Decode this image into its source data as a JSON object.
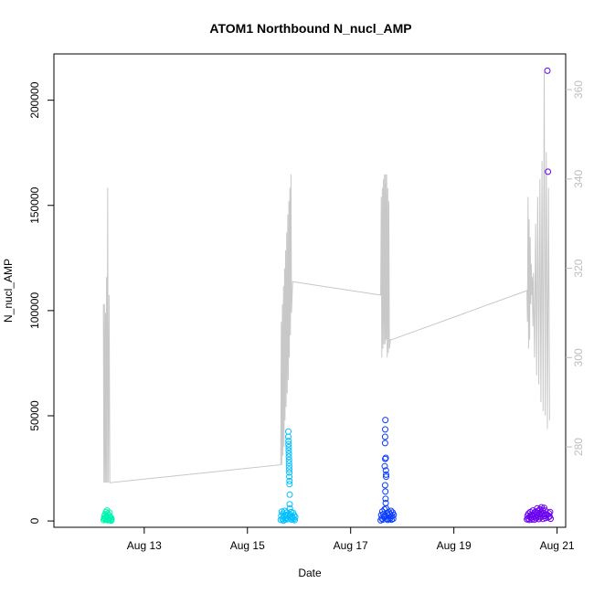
{
  "chart_data": {
    "type": "scatter",
    "title": "ATOM1 Northbound N_nucl_AMP",
    "xlabel": "Date",
    "ylabel": "N_nucl_AMP",
    "x_type": "date",
    "xlim": [
      "2024-08-11 06:00",
      "2024-08-21 04:00"
    ],
    "ylim": [
      -3000,
      222000
    ],
    "x_ticks": [
      {
        "date": "2024-08-13",
        "label": "Aug 13"
      },
      {
        "date": "2024-08-15",
        "label": "Aug 15"
      },
      {
        "date": "2024-08-17",
        "label": "Aug 17"
      },
      {
        "date": "2024-08-19",
        "label": "Aug 19"
      },
      {
        "date": "2024-08-21",
        "label": "Aug 21"
      }
    ],
    "y_ticks": [
      {
        "value": 0,
        "label": "0"
      },
      {
        "value": 50000,
        "label": "50000"
      },
      {
        "value": 100000,
        "label": "100000"
      },
      {
        "value": 150000,
        "label": "150000"
      },
      {
        "value": 200000,
        "label": "200000"
      }
    ],
    "y2lim": [
      262,
      368
    ],
    "y2_ticks": [
      {
        "value": 280,
        "label": "280"
      },
      {
        "value": 300,
        "label": "300"
      },
      {
        "value": 320,
        "label": "320"
      },
      {
        "value": 340,
        "label": "340"
      },
      {
        "value": 360,
        "label": "360"
      }
    ],
    "grid": false,
    "legend": "none",
    "secondary_line": {
      "axis": "right",
      "color": "#c8c8c8",
      "points": [
        [
          "2024-08-12 05:00",
          312
        ],
        [
          "2024-08-12 05:15",
          272
        ],
        [
          "2024-08-12 05:30",
          312
        ],
        [
          "2024-08-12 05:45",
          272
        ],
        [
          "2024-08-12 06:00",
          310
        ],
        [
          "2024-08-12 06:15",
          272
        ],
        [
          "2024-08-12 06:30",
          318
        ],
        [
          "2024-08-12 06:45",
          272
        ],
        [
          "2024-08-12 07:00",
          338
        ],
        [
          "2024-08-12 07:20",
          272
        ],
        [
          "2024-08-12 07:40",
          314
        ],
        [
          "2024-08-12 08:00",
          272
        ],
        [
          "2024-08-12 08:30",
          272
        ],
        [
          "2024-08-15 15:30",
          276
        ],
        [
          "2024-08-15 15:45",
          308
        ],
        [
          "2024-08-15 16:00",
          276
        ],
        [
          "2024-08-15 16:15",
          312
        ],
        [
          "2024-08-15 16:30",
          278
        ],
        [
          "2024-08-15 16:45",
          316
        ],
        [
          "2024-08-15 17:00",
          280
        ],
        [
          "2024-08-15 17:15",
          320
        ],
        [
          "2024-08-15 17:30",
          286
        ],
        [
          "2024-08-15 17:45",
          324
        ],
        [
          "2024-08-15 18:00",
          289
        ],
        [
          "2024-08-15 18:15",
          328
        ],
        [
          "2024-08-15 18:30",
          292
        ],
        [
          "2024-08-15 18:45",
          332
        ],
        [
          "2024-08-15 19:00",
          295
        ],
        [
          "2024-08-15 19:15",
          335
        ],
        [
          "2024-08-15 19:30",
          300
        ],
        [
          "2024-08-15 19:45",
          338
        ],
        [
          "2024-08-15 20:00",
          305
        ],
        [
          "2024-08-15 20:15",
          341
        ],
        [
          "2024-08-15 20:30",
          310
        ],
        [
          "2024-08-15 21:00",
          317
        ],
        [
          "2024-08-17 14:00",
          314
        ],
        [
          "2024-08-17 14:15",
          336
        ],
        [
          "2024-08-17 14:30",
          300
        ],
        [
          "2024-08-17 14:45",
          338
        ],
        [
          "2024-08-17 15:00",
          302
        ],
        [
          "2024-08-17 15:15",
          340
        ],
        [
          "2024-08-17 15:30",
          303
        ],
        [
          "2024-08-17 15:45",
          341
        ],
        [
          "2024-08-17 16:00",
          303
        ],
        [
          "2024-08-17 16:15",
          341
        ],
        [
          "2024-08-17 16:30",
          304
        ],
        [
          "2024-08-17 16:45",
          341
        ],
        [
          "2024-08-17 17:00",
          300
        ],
        [
          "2024-08-17 17:15",
          338
        ],
        [
          "2024-08-17 17:30",
          301
        ],
        [
          "2024-08-17 17:45",
          335
        ],
        [
          "2024-08-17 18:00",
          302
        ],
        [
          "2024-08-17 18:30",
          304
        ],
        [
          "2024-08-17 19:00",
          304
        ],
        [
          "2024-08-20 10:00",
          315
        ],
        [
          "2024-08-20 10:15",
          308
        ],
        [
          "2024-08-20 10:30",
          336
        ],
        [
          "2024-08-20 10:45",
          302
        ],
        [
          "2024-08-20 11:00",
          331
        ],
        [
          "2024-08-20 11:15",
          304
        ],
        [
          "2024-08-20 11:30",
          327
        ],
        [
          "2024-08-20 11:45",
          312
        ],
        [
          "2024-08-20 12:00",
          321
        ],
        [
          "2024-08-20 12:15",
          314
        ],
        [
          "2024-08-20 12:30",
          318
        ],
        [
          "2024-08-20 12:45",
          307
        ],
        [
          "2024-08-20 13:00",
          319
        ],
        [
          "2024-08-20 13:30",
          300
        ],
        [
          "2024-08-20 14:00",
          330
        ],
        [
          "2024-08-20 14:30",
          296
        ],
        [
          "2024-08-20 15:00",
          336
        ],
        [
          "2024-08-20 15:30",
          294
        ],
        [
          "2024-08-20 16:00",
          340
        ],
        [
          "2024-08-20 16:30",
          290
        ],
        [
          "2024-08-20 17:00",
          344
        ],
        [
          "2024-08-20 17:30",
          288
        ],
        [
          "2024-08-20 18:00",
          364
        ],
        [
          "2024-08-20 18:30",
          287
        ],
        [
          "2024-08-20 19:00",
          346
        ],
        [
          "2024-08-20 19:30",
          284
        ],
        [
          "2024-08-20 20:00",
          338
        ],
        [
          "2024-08-20 20:30",
          286
        ]
      ]
    },
    "series": [
      {
        "color": "#00f5b0",
        "points": [
          [
            "2024-08-12 05:10",
            400
          ],
          [
            "2024-08-12 05:20",
            1200
          ],
          [
            "2024-08-12 05:30",
            2500
          ],
          [
            "2024-08-12 05:40",
            800
          ],
          [
            "2024-08-12 05:50",
            3200
          ],
          [
            "2024-08-12 06:00",
            1500
          ],
          [
            "2024-08-12 06:10",
            4200
          ],
          [
            "2024-08-12 06:20",
            600
          ],
          [
            "2024-08-12 06:30",
            2200
          ],
          [
            "2024-08-12 06:40",
            5000
          ],
          [
            "2024-08-12 06:50",
            1000
          ],
          [
            "2024-08-12 07:00",
            3500
          ],
          [
            "2024-08-12 07:10",
            300
          ],
          [
            "2024-08-12 07:20",
            2800
          ],
          [
            "2024-08-12 07:30",
            1800
          ],
          [
            "2024-08-12 07:40",
            700
          ],
          [
            "2024-08-12 07:50",
            4000
          ],
          [
            "2024-08-12 08:00",
            1300
          ],
          [
            "2024-08-12 08:10",
            2000
          ],
          [
            "2024-08-12 08:20",
            500
          ],
          [
            "2024-08-12 08:30",
            1600
          ],
          [
            "2024-08-12 08:40",
            200
          ],
          [
            "2024-08-12 08:50",
            900
          ]
        ]
      },
      {
        "color": "#00bfff",
        "points": [
          [
            "2024-08-15 15:30",
            500
          ],
          [
            "2024-08-15 15:45",
            2500
          ],
          [
            "2024-08-15 16:00",
            4500
          ],
          [
            "2024-08-15 16:15",
            1000
          ],
          [
            "2024-08-15 16:30",
            3500
          ],
          [
            "2024-08-15 16:45",
            200
          ],
          [
            "2024-08-15 17:00",
            2000
          ],
          [
            "2024-08-15 17:15",
            4800
          ],
          [
            "2024-08-15 17:30",
            700
          ],
          [
            "2024-08-15 17:45",
            3000
          ],
          [
            "2024-08-15 18:00",
            1500
          ],
          [
            "2024-08-15 18:15",
            4000
          ],
          [
            "2024-08-15 18:30",
            800
          ],
          [
            "2024-08-15 18:45",
            2500
          ],
          [
            "2024-08-15 19:00",
            42500
          ],
          [
            "2024-08-15 19:00",
            40000
          ],
          [
            "2024-08-15 19:05",
            38000
          ],
          [
            "2024-08-15 19:05",
            36500
          ],
          [
            "2024-08-15 19:10",
            35000
          ],
          [
            "2024-08-15 19:10",
            33500
          ],
          [
            "2024-08-15 19:15",
            32000
          ],
          [
            "2024-08-15 19:15",
            30500
          ],
          [
            "2024-08-15 19:20",
            29000
          ],
          [
            "2024-08-15 19:20",
            27500
          ],
          [
            "2024-08-15 19:25",
            26000
          ],
          [
            "2024-08-15 19:25",
            24500
          ],
          [
            "2024-08-15 19:30",
            23000
          ],
          [
            "2024-08-15 19:30",
            21000
          ],
          [
            "2024-08-15 19:35",
            19000
          ],
          [
            "2024-08-15 19:35",
            17500
          ],
          [
            "2024-08-15 19:40",
            12500
          ],
          [
            "2024-08-15 19:40",
            8000
          ],
          [
            "2024-08-15 19:45",
            6000
          ],
          [
            "2024-08-15 19:50",
            3000
          ],
          [
            "2024-08-15 20:00",
            1200
          ],
          [
            "2024-08-15 20:15",
            4200
          ],
          [
            "2024-08-15 20:30",
            600
          ],
          [
            "2024-08-15 20:45",
            2200
          ],
          [
            "2024-08-15 21:00",
            1500
          ],
          [
            "2024-08-15 21:15",
            3800
          ],
          [
            "2024-08-15 21:30",
            900
          ],
          [
            "2024-08-15 21:45",
            2700
          ],
          [
            "2024-08-15 22:00",
            400
          ],
          [
            "2024-08-15 22:15",
            1900
          ]
        ]
      },
      {
        "color": "#0a3cff",
        "points": [
          [
            "2024-08-17 14:00",
            300
          ],
          [
            "2024-08-17 14:15",
            2800
          ],
          [
            "2024-08-17 14:30",
            1200
          ],
          [
            "2024-08-17 14:45",
            4500
          ],
          [
            "2024-08-17 15:00",
            700
          ],
          [
            "2024-08-17 15:15",
            3200
          ],
          [
            "2024-08-17 15:30",
            1800
          ],
          [
            "2024-08-17 15:45",
            5500
          ],
          [
            "2024-08-17 16:00",
            2200
          ],
          [
            "2024-08-17 16:10",
            48000
          ],
          [
            "2024-08-17 16:05",
            43500
          ],
          [
            "2024-08-17 16:00",
            40000
          ],
          [
            "2024-08-17 16:00",
            37000
          ],
          [
            "2024-08-17 16:20",
            30000
          ],
          [
            "2024-08-17 16:05",
            29500
          ],
          [
            "2024-08-17 15:50",
            26000
          ],
          [
            "2024-08-17 16:25",
            24000
          ],
          [
            "2024-08-17 16:30",
            22000
          ],
          [
            "2024-08-17 16:30",
            21000
          ],
          [
            "2024-08-17 16:00",
            17000
          ],
          [
            "2024-08-17 16:10",
            14000
          ],
          [
            "2024-08-17 16:15",
            10500
          ],
          [
            "2024-08-17 16:20",
            8500
          ],
          [
            "2024-08-17 16:30",
            6000
          ],
          [
            "2024-08-17 16:45",
            1000
          ],
          [
            "2024-08-17 17:00",
            3800
          ],
          [
            "2024-08-17 17:15",
            500
          ],
          [
            "2024-08-17 17:30",
            2600
          ],
          [
            "2024-08-17 17:45",
            4200
          ],
          [
            "2024-08-17 18:00",
            900
          ],
          [
            "2024-08-17 18:15",
            3400
          ],
          [
            "2024-08-17 18:30",
            1500
          ],
          [
            "2024-08-17 18:45",
            4800
          ],
          [
            "2024-08-17 19:00",
            600
          ],
          [
            "2024-08-17 19:15",
            2400
          ],
          [
            "2024-08-17 19:30",
            4000
          ],
          [
            "2024-08-17 19:45",
            1100
          ],
          [
            "2024-08-17 20:00",
            2900
          ]
        ]
      },
      {
        "color": "#6a00f0",
        "points": [
          [
            "2024-08-20 10:00",
            800
          ],
          [
            "2024-08-20 10:15",
            2500
          ],
          [
            "2024-08-20 10:30",
            1200
          ],
          [
            "2024-08-20 10:45",
            3500
          ],
          [
            "2024-08-20 11:00",
            500
          ],
          [
            "2024-08-20 11:15",
            2000
          ],
          [
            "2024-08-20 11:30",
            4200
          ],
          [
            "2024-08-20 11:45",
            1500
          ],
          [
            "2024-08-20 12:00",
            3000
          ],
          [
            "2024-08-20 12:15",
            700
          ],
          [
            "2024-08-20 12:30",
            2800
          ],
          [
            "2024-08-20 12:45",
            5000
          ],
          [
            "2024-08-20 13:00",
            1800
          ],
          [
            "2024-08-20 13:15",
            3600
          ],
          [
            "2024-08-20 13:30",
            600
          ],
          [
            "2024-08-20 13:45",
            2300
          ],
          [
            "2024-08-20 14:00",
            4500
          ],
          [
            "2024-08-20 14:15",
            1300
          ],
          [
            "2024-08-20 14:30",
            3900
          ],
          [
            "2024-08-20 14:45",
            6000
          ],
          [
            "2024-08-20 15:00",
            2100
          ],
          [
            "2024-08-20 15:15",
            4800
          ],
          [
            "2024-08-20 15:30",
            900
          ],
          [
            "2024-08-20 15:45",
            3300
          ],
          [
            "2024-08-20 16:00",
            5500
          ],
          [
            "2024-08-20 16:15",
            1700
          ],
          [
            "2024-08-20 16:30",
            4100
          ],
          [
            "2024-08-20 16:45",
            6500
          ],
          [
            "2024-08-20 17:00",
            2600
          ],
          [
            "2024-08-20 17:15",
            5200
          ],
          [
            "2024-08-20 17:30",
            1000
          ],
          [
            "2024-08-20 17:45",
            3700
          ],
          [
            "2024-08-20 18:00",
            6200
          ],
          [
            "2024-08-20 18:15",
            2400
          ],
          [
            "2024-08-20 18:30",
            4900
          ],
          [
            "2024-08-20 18:45",
            1400
          ],
          [
            "2024-08-20 19:00",
            3100
          ],
          [
            "2024-08-20 19:30",
            2900
          ],
          [
            "2024-08-20 20:00",
            1800
          ],
          [
            "2024-08-20 20:15",
            3600
          ],
          [
            "2024-08-20 20:30",
            2200
          ],
          [
            "2024-08-20 20:45",
            4300
          ],
          [
            "2024-08-20 21:00",
            1100
          ],
          [
            "2024-08-20 19:30",
            214000
          ],
          [
            "2024-08-20 19:45",
            166000
          ]
        ]
      }
    ]
  }
}
